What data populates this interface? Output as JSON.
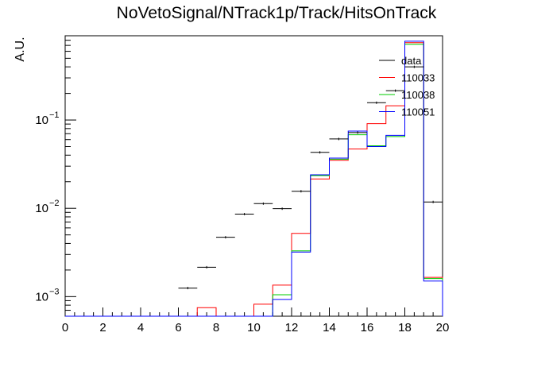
{
  "chart_data": {
    "type": "histogram",
    "title": "NoVetoSignal/NTrack1p/Track/HitsOnTrack",
    "xlabel": "",
    "ylabel": "A.U.",
    "xlim": [
      0,
      20
    ],
    "ylim": [
      0.0006,
      0.9
    ],
    "yscale": "log",
    "xticks": [
      "0",
      "2",
      "4",
      "6",
      "8",
      "10",
      "12",
      "14",
      "16",
      "18",
      "20"
    ],
    "yticks": [
      {
        "value": 0.001,
        "base": "10",
        "exp": "−3"
      },
      {
        "value": 0.01,
        "base": "10",
        "exp": "−2"
      },
      {
        "value": 0.1,
        "base": "10",
        "exp": "−1"
      }
    ],
    "bin_edges": [
      0,
      1,
      2,
      3,
      4,
      5,
      6,
      7,
      8,
      9,
      10,
      11,
      12,
      13,
      14,
      15,
      16,
      17,
      18,
      19,
      20
    ],
    "legend_position": "top-right",
    "series": [
      {
        "name": "data",
        "style": "points",
        "color": "#000000",
        "values": [
          0,
          0,
          0,
          0,
          0,
          0,
          0.00125,
          0.00215,
          0.0047,
          0.0086,
          0.0113,
          0.0099,
          0.0156,
          0.043,
          0.061,
          0.072,
          0.157,
          0.215,
          0.4,
          0.0118
        ]
      },
      {
        "name": "110033",
        "style": "step",
        "color": "#ff0000",
        "values": [
          0,
          0,
          0,
          0,
          0,
          0,
          0,
          0.00075,
          0,
          0,
          0.00082,
          0.00135,
          0.0052,
          0.0215,
          0.035,
          0.047,
          0.091,
          0.145,
          0.75,
          0.00165
        ]
      },
      {
        "name": "110038",
        "style": "step",
        "color": "#00cc00",
        "values": [
          0,
          0,
          0,
          0,
          0,
          0,
          0,
          0,
          0,
          0,
          0,
          0.00105,
          0.0033,
          0.0235,
          0.036,
          0.068,
          0.051,
          0.065,
          0.72,
          0.0016
        ]
      },
      {
        "name": "110051",
        "style": "step",
        "color": "#0000ff",
        "values": [
          0,
          0,
          0,
          0,
          0,
          0,
          0,
          0,
          0,
          0,
          0,
          0.00093,
          0.0032,
          0.024,
          0.037,
          0.075,
          0.05,
          0.067,
          0.78,
          0.0015
        ]
      }
    ]
  }
}
